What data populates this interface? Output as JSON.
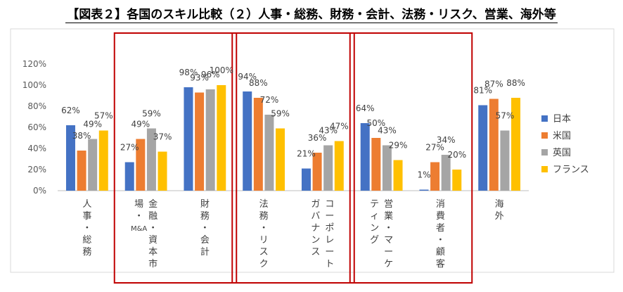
{
  "title": "【図表２】各国のスキル比較（２）人事・総務、財務・会計、法務・リスク、営業、海外等",
  "chart_data": {
    "type": "bar",
    "title": "【図表２】各国のスキル比較（２）人事・総務、財務・会計、法務・リスク、営業、海外等",
    "categories": [
      "人事・総務",
      "金融・資本市場・M&A",
      "財務・会計",
      "法務・リスク",
      "コーポレートガバナンス",
      "営業・マーケティング",
      "消費者・顧客",
      "海外"
    ],
    "category_lines": [
      [
        "人事・総務"
      ],
      [
        "金融・資本市",
        "場・M&A"
      ],
      [
        "財務・会計"
      ],
      [
        "法務・リスク"
      ],
      [
        "コーポレート",
        "ガバナンス"
      ],
      [
        "営業・マーケ",
        "ティング"
      ],
      [
        "消費者・顧客"
      ],
      [
        "海外"
      ]
    ],
    "series": [
      {
        "name": "日本",
        "color": "#4472C4",
        "values": [
          62,
          27,
          98,
          94,
          21,
          64,
          1,
          81
        ]
      },
      {
        "name": "米国",
        "color": "#ED7D31",
        "values": [
          38,
          49,
          93,
          88,
          36,
          50,
          27,
          87
        ]
      },
      {
        "name": "英国",
        "color": "#A5A5A5",
        "values": [
          49,
          59,
          96,
          72,
          43,
          43,
          34,
          57
        ]
      },
      {
        "name": "フランス",
        "color": "#FFC000",
        "values": [
          57,
          37,
          100,
          59,
          47,
          29,
          20,
          88
        ]
      }
    ],
    "value_labels": [
      [
        "62%",
        "27%",
        "98%",
        "94%",
        "21%",
        "64%",
        "1%",
        "81%"
      ],
      [
        "38%",
        "49%",
        "93%",
        "88%",
        "36%",
        "50%",
        "27%",
        "87%"
      ],
      [
        "49%",
        "59%",
        "96%",
        "72%",
        "43%",
        "43%",
        "34%",
        "57%"
      ],
      [
        "57%",
        "37%",
        "100%",
        "59%",
        "47%",
        "29%",
        "20%",
        "88%"
      ]
    ],
    "y_ticks": [
      "0%",
      "20%",
      "40%",
      "60%",
      "80%",
      "100%",
      "120%"
    ],
    "y_tick_values": [
      0,
      20,
      40,
      60,
      80,
      100,
      120
    ],
    "ylim": [
      0,
      120
    ],
    "xlabel": "",
    "ylabel": "",
    "legend_position": "right",
    "highlight_groups": [
      [
        1,
        2
      ],
      [
        3,
        4
      ],
      [
        5,
        6
      ]
    ],
    "highlight_color": "#C00000",
    "grid": false
  }
}
